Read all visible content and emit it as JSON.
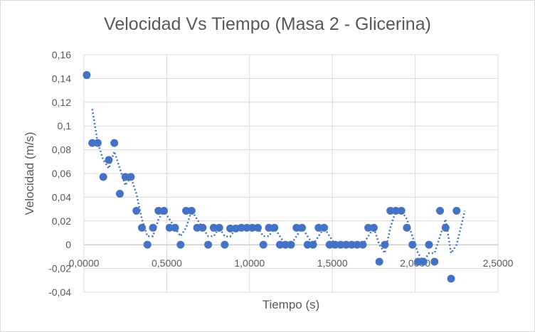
{
  "chart_data": {
    "type": "scatter",
    "title": "Velocidad Vs Tiempo (Masa 2 - Glicerina)",
    "xlabel": "Tiempo (s)",
    "ylabel": "Velocidad (m/s)",
    "xlim": [
      0,
      2.5
    ],
    "ylim": [
      -0.04,
      0.16
    ],
    "x_ticks": [
      0,
      0.5,
      1.0,
      1.5,
      2.0,
      2.5
    ],
    "x_tick_labels": [
      "0,0000",
      "0,5000",
      "1,0000",
      "1,5000",
      "2,0000",
      "2,5000"
    ],
    "y_ticks": [
      -0.04,
      -0.02,
      0,
      0.02,
      0.04,
      0.06,
      0.08,
      0.1,
      0.12,
      0.14,
      0.16
    ],
    "y_tick_labels": [
      "-0,04",
      "-0,02",
      "0",
      "0,02",
      "0,04",
      "0,06",
      "0,08",
      "0,1",
      "0,12",
      "0,14",
      "0,16"
    ],
    "grid": true,
    "marker_color": "#4472c4",
    "trendline": "dotted moving average",
    "series": [
      {
        "points": [
          [
            0.0167,
            0.1429
          ],
          [
            0.05,
            0.0857
          ],
          [
            0.0833,
            0.0857
          ],
          [
            0.1167,
            0.0571
          ],
          [
            0.15,
            0.0714
          ],
          [
            0.1833,
            0.0857
          ],
          [
            0.2167,
            0.0429
          ],
          [
            0.25,
            0.0571
          ],
          [
            0.2833,
            0.0571
          ],
          [
            0.3167,
            0.0286
          ],
          [
            0.35,
            0.0143
          ],
          [
            0.3833,
            0.0
          ],
          [
            0.4167,
            0.0143
          ],
          [
            0.45,
            0.0286
          ],
          [
            0.4833,
            0.0286
          ],
          [
            0.5167,
            0.0143
          ],
          [
            0.55,
            0.0143
          ],
          [
            0.5833,
            0.0
          ],
          [
            0.6167,
            0.0286
          ],
          [
            0.65,
            0.0286
          ],
          [
            0.6833,
            0.0143
          ],
          [
            0.7167,
            0.0143
          ],
          [
            0.75,
            0.0
          ],
          [
            0.7833,
            0.0143
          ],
          [
            0.8167,
            0.0143
          ],
          [
            0.85,
            0.0
          ],
          [
            0.8833,
            0.0137
          ],
          [
            0.9167,
            0.0137
          ],
          [
            0.95,
            0.0143
          ],
          [
            0.9833,
            0.0143
          ],
          [
            1.0167,
            0.0143
          ],
          [
            1.05,
            0.0143
          ],
          [
            1.0833,
            0.0
          ],
          [
            1.1167,
            0.0143
          ],
          [
            1.15,
            0.0143
          ],
          [
            1.1833,
            0.0
          ],
          [
            1.2167,
            0.0
          ],
          [
            1.25,
            0.0
          ],
          [
            1.2833,
            0.0143
          ],
          [
            1.3167,
            0.0143
          ],
          [
            1.35,
            0.0
          ],
          [
            1.3833,
            0.0
          ],
          [
            1.4167,
            0.0143
          ],
          [
            1.45,
            0.0143
          ],
          [
            1.4833,
            0.0
          ],
          [
            1.5167,
            0.0
          ],
          [
            1.55,
            0.0
          ],
          [
            1.5833,
            0.0
          ],
          [
            1.6167,
            0.0
          ],
          [
            1.65,
            0.0
          ],
          [
            1.6833,
            0.0
          ],
          [
            1.7167,
            0.0143
          ],
          [
            1.75,
            0.0143
          ],
          [
            1.7833,
            -0.0143
          ],
          [
            1.8167,
            0.0
          ],
          [
            1.85,
            0.0286
          ],
          [
            1.8833,
            0.0286
          ],
          [
            1.9167,
            0.0286
          ],
          [
            1.95,
            0.0143
          ],
          [
            1.9833,
            0.0
          ],
          [
            2.0167,
            -0.0143
          ],
          [
            2.05,
            -0.0143
          ],
          [
            2.0833,
            0.0
          ],
          [
            2.1167,
            -0.0143
          ],
          [
            2.15,
            0.0286
          ],
          [
            2.1833,
            0.0143
          ],
          [
            2.2167,
            -0.0286
          ],
          [
            2.25,
            0.0286
          ]
        ]
      }
    ]
  }
}
